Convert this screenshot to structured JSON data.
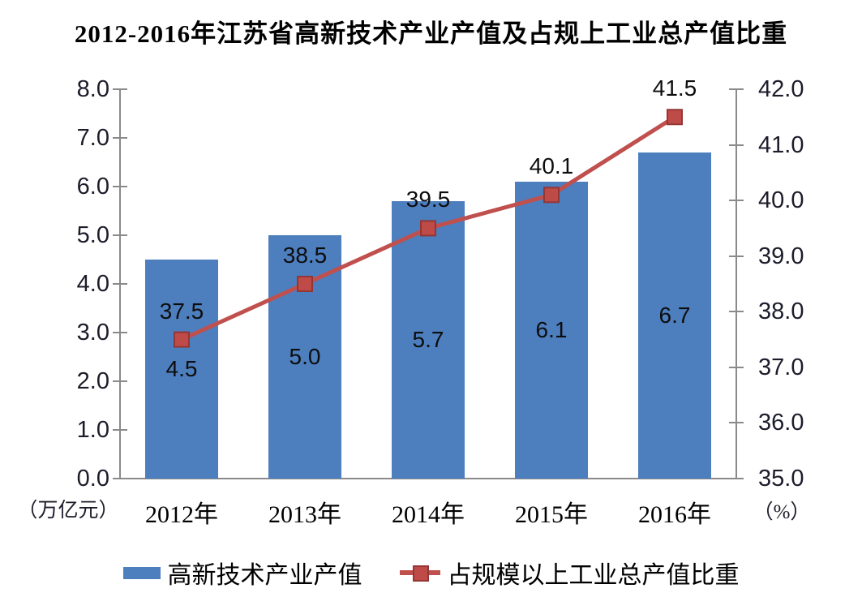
{
  "chart_data": {
    "type": "bar+line",
    "title": "2012-2016年江苏省高新技术产业产值及占规上工业总产值比重",
    "categories": [
      "2012年",
      "2013年",
      "2014年",
      "2015年",
      "2016年"
    ],
    "series": [
      {
        "name": "高新技术产业产值",
        "type": "bar",
        "axis": "left",
        "values": [
          4.5,
          5.0,
          5.7,
          6.1,
          6.7
        ],
        "data_labels": [
          "4.5",
          "5.0",
          "5.7",
          "6.1",
          "6.7"
        ]
      },
      {
        "name": "占规模以上工业总产值比重",
        "type": "line",
        "axis": "right",
        "values": [
          37.5,
          38.5,
          39.5,
          40.1,
          41.5
        ],
        "data_labels": [
          "37.5",
          "38.5",
          "39.5",
          "40.1",
          "41.5"
        ]
      }
    ],
    "left_axis": {
      "unit_label": "（万亿元）",
      "min": 0.0,
      "max": 8.0,
      "step": 1.0,
      "tick_labels": [
        "8.0",
        "7.0",
        "6.0",
        "5.0",
        "4.0",
        "3.0",
        "2.0",
        "1.0",
        "0.0"
      ]
    },
    "right_axis": {
      "unit_label": "（%）",
      "min": 35.0,
      "max": 42.0,
      "step": 1.0,
      "tick_labels": [
        "42.0",
        "41.0",
        "40.0",
        "39.0",
        "38.0",
        "37.0",
        "36.0",
        "35.0"
      ]
    },
    "legend_position": "bottom",
    "grid": false
  },
  "colors": {
    "bar_fill": "#4D7EBE",
    "line_stroke": "#C0504D",
    "marker_fill": "#BE4B48",
    "marker_border": "#943634",
    "axis_line": "#8A8A8A",
    "tick_text": "#1C1C2B",
    "label_text": "#0D0D0D",
    "background": "#FFFFFF"
  }
}
